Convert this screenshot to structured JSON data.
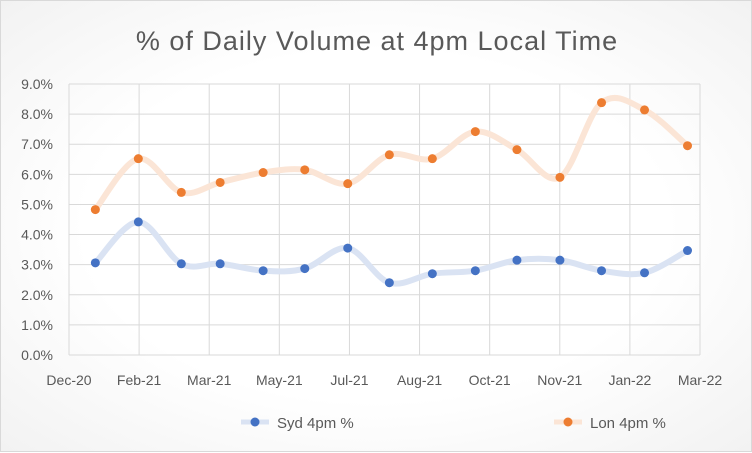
{
  "chart_data": {
    "type": "line",
    "title": "% of Daily Volume at 4pm Local Time",
    "xlabel": "",
    "ylabel": "",
    "x_tick_labels": [
      "Dec-20",
      "Feb-21",
      "Mar-21",
      "May-21",
      "Jul-21",
      "Aug-21",
      "Oct-21",
      "Nov-21",
      "Jan-22",
      "Mar-22"
    ],
    "y_tick_labels": [
      "0.0%",
      "1.0%",
      "2.0%",
      "3.0%",
      "4.0%",
      "5.0%",
      "6.0%",
      "7.0%",
      "8.0%",
      "9.0%"
    ],
    "ylim": [
      0,
      9
    ],
    "grid": true,
    "smooth": true,
    "legend": "bottom",
    "x": [
      "2020-12-20",
      "2021-01-20",
      "2021-02-20",
      "2021-03-20",
      "2021-04-20",
      "2021-05-20",
      "2021-06-20",
      "2021-07-20",
      "2021-08-20",
      "2021-09-20",
      "2021-10-20",
      "2021-11-20",
      "2021-12-20",
      "2022-01-20",
      "2022-02-20"
    ],
    "series": [
      {
        "name": "Syd 4pm %",
        "color": "#4472c4",
        "line_color": "#dae3f3",
        "values": [
          3.06,
          4.42,
          3.03,
          3.03,
          2.8,
          2.87,
          3.55,
          2.4,
          2.7,
          2.8,
          3.15,
          3.15,
          2.8,
          2.73,
          3.47
        ]
      },
      {
        "name": "Lon 4pm %",
        "color": "#ed7d31",
        "line_color": "#fbe5d6",
        "values": [
          4.83,
          6.52,
          5.4,
          5.73,
          6.06,
          6.15,
          5.69,
          6.65,
          6.52,
          7.42,
          6.82,
          5.9,
          8.38,
          8.14,
          6.95
        ]
      }
    ]
  }
}
